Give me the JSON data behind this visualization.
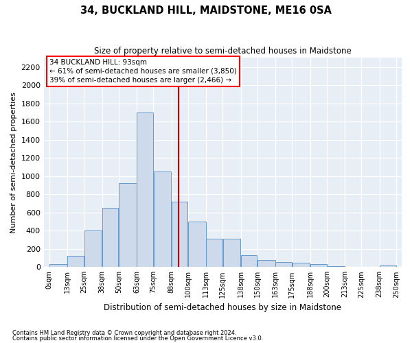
{
  "title": "34, BUCKLAND HILL, MAIDSTONE, ME16 0SA",
  "subtitle": "Size of property relative to semi-detached houses in Maidstone",
  "xlabel": "Distribution of semi-detached houses by size in Maidstone",
  "ylabel": "Number of semi-detached properties",
  "footnote1": "Contains HM Land Registry data © Crown copyright and database right 2024.",
  "footnote2": "Contains public sector information licensed under the Open Government Licence v3.0.",
  "property_size": 93,
  "annotation_title": "34 BUCKLAND HILL: 93sqm",
  "annotation_line1": "← 61% of semi-detached houses are smaller (3,850)",
  "annotation_line2": "39% of semi-detached houses are larger (2,466) →",
  "bar_color": "#ccdaec",
  "bar_edge_color": "#6699cc",
  "line_color": "#cc0000",
  "background_color": "#e8eef6",
  "bins": [
    0,
    13,
    25,
    38,
    50,
    63,
    75,
    88,
    100,
    113,
    125,
    138,
    150,
    163,
    175,
    188,
    200,
    213,
    225,
    238,
    250
  ],
  "bin_labels": [
    "0sqm",
    "13sqm",
    "25sqm",
    "38sqm",
    "50sqm",
    "63sqm",
    "75sqm",
    "88sqm",
    "100sqm",
    "113sqm",
    "125sqm",
    "138sqm",
    "150sqm",
    "163sqm",
    "175sqm",
    "188sqm",
    "200sqm",
    "213sqm",
    "225sqm",
    "238sqm",
    "250sqm"
  ],
  "counts": [
    30,
    120,
    400,
    650,
    920,
    1700,
    1050,
    720,
    500,
    310,
    310,
    130,
    80,
    55,
    45,
    35,
    10,
    5,
    5,
    20
  ],
  "ylim": [
    0,
    2300
  ],
  "yticks": [
    0,
    200,
    400,
    600,
    800,
    1000,
    1200,
    1400,
    1600,
    1800,
    2000,
    2200
  ]
}
